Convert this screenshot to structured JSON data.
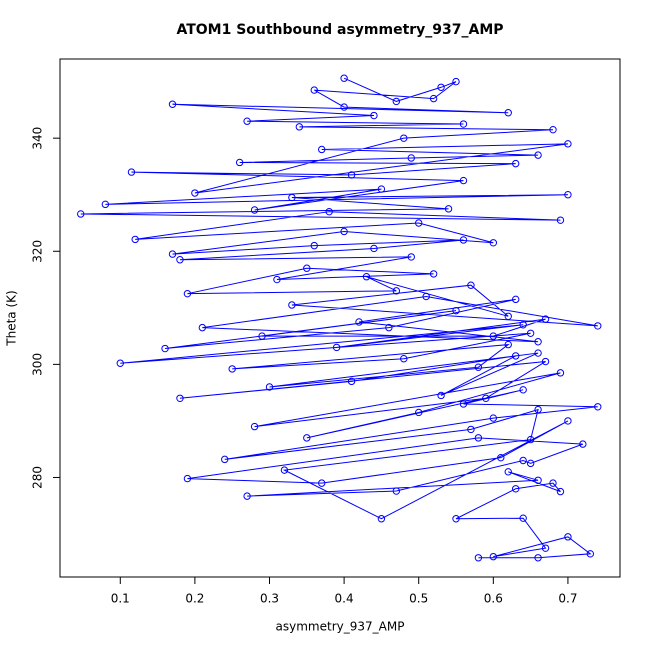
{
  "chart_data": {
    "type": "line",
    "title": "ATOM1 Southbound asymmetry_937_AMP",
    "x_label": "asymmetry_937_AMP",
    "y_label": "Theta (K)",
    "color": "#0000ff",
    "markers": true,
    "xlim": [
      0.0192,
      0.7698
    ],
    "ylim": [
      262.4,
      354.0
    ],
    "xticks": [
      0.1,
      0.2,
      0.3,
      0.4,
      0.5,
      0.6,
      0.7
    ],
    "yticks": [
      280,
      300,
      320,
      340
    ],
    "x": [
      0.58,
      0.66,
      0.73,
      0.7,
      0.6,
      0.67,
      0.64,
      0.55,
      0.63,
      0.68,
      0.69,
      0.62,
      0.66,
      0.27,
      0.47,
      0.64,
      0.65,
      0.72,
      0.58,
      0.19,
      0.37,
      0.61,
      0.7,
      0.45,
      0.32,
      0.65,
      0.66,
      0.57,
      0.24,
      0.6,
      0.74,
      0.56,
      0.64,
      0.35,
      0.5,
      0.69,
      0.28,
      0.59,
      0.67,
      0.18,
      0.41,
      0.63,
      0.53,
      0.66,
      0.3,
      0.58,
      0.62,
      0.25,
      0.48,
      0.65,
      0.1,
      0.64,
      0.39,
      0.67,
      0.6,
      0.29,
      0.55,
      0.16,
      0.46,
      0.63,
      0.42,
      0.66,
      0.21,
      0.51,
      0.74,
      0.33,
      0.57,
      0.62,
      0.43,
      0.47,
      0.19,
      0.35,
      0.52,
      0.31,
      0.49,
      0.18,
      0.44,
      0.56,
      0.36,
      0.17,
      0.4,
      0.6,
      0.5,
      0.12,
      0.38,
      0.69,
      0.047,
      0.54,
      0.33,
      0.7,
      0.08,
      0.45,
      0.28,
      0.56,
      0.115,
      0.41,
      0.63,
      0.26,
      0.49,
      0.66,
      0.37,
      0.7,
      0.2,
      0.48,
      0.68,
      0.34,
      0.56,
      0.27,
      0.44,
      0.17,
      0.62,
      0.4,
      0.36,
      0.52,
      0.55,
      0.53,
      0.47,
      0.4
    ],
    "values": [
      265.8,
      265.8,
      266.5,
      269.5,
      266.0,
      267.5,
      272.8,
      272.7,
      278.0,
      279.0,
      277.5,
      281.0,
      279.5,
      276.7,
      277.6,
      283.0,
      282.5,
      285.9,
      287.0,
      279.8,
      279.0,
      283.5,
      290.0,
      272.7,
      281.3,
      286.7,
      292.0,
      288.5,
      283.2,
      290.5,
      292.5,
      293.0,
      295.5,
      287.0,
      291.5,
      298.5,
      289.0,
      294.0,
      300.5,
      294.0,
      297.0,
      301.5,
      294.5,
      302.0,
      296.0,
      299.5,
      303.5,
      299.2,
      301.0,
      305.5,
      300.2,
      307.0,
      303.0,
      308.0,
      305.0,
      305.0,
      309.5,
      302.8,
      306.5,
      311.5,
      307.5,
      304.0,
      306.5,
      312.0,
      306.8,
      310.5,
      314.0,
      308.5,
      315.5,
      313.0,
      312.5,
      317.0,
      316.0,
      315.0,
      319.0,
      318.5,
      320.5,
      322.0,
      321.0,
      319.5,
      323.5,
      321.5,
      325.0,
      322.1,
      327.0,
      325.5,
      326.6,
      327.5,
      329.5,
      330.0,
      328.3,
      331.0,
      327.3,
      332.5,
      334.0,
      333.5,
      335.5,
      335.7,
      336.5,
      337.0,
      338.0,
      339.0,
      330.3,
      340.0,
      341.5,
      342.0,
      342.5,
      343.0,
      344.0,
      346.0,
      344.5,
      345.5,
      348.5,
      347.0,
      350.0,
      349.0,
      346.5,
      350.6
    ]
  }
}
